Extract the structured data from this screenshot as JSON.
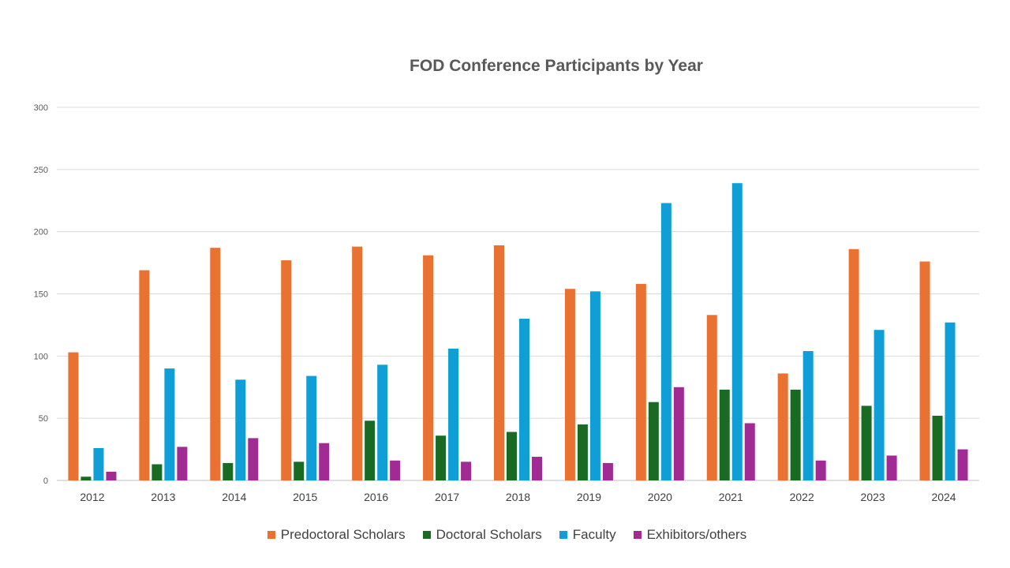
{
  "chart_data": {
    "type": "bar",
    "title": "FOD Conference Participants by Year",
    "xlabel": "",
    "ylabel": "",
    "ylim": [
      0,
      300
    ],
    "yticks": [
      0,
      50,
      100,
      150,
      200,
      250,
      300
    ],
    "grid": true,
    "legend_position": "bottom",
    "categories": [
      "2012",
      "2013",
      "2014",
      "2015",
      "2016",
      "2017",
      "2018",
      "2019",
      "2020",
      "2021",
      "2022",
      "2023",
      "2024"
    ],
    "series": [
      {
        "name": "Predoctoral Scholars",
        "color": "#E97132",
        "values": [
          103,
          169,
          187,
          177,
          188,
          181,
          189,
          154,
          158,
          133,
          86,
          186,
          176
        ]
      },
      {
        "name": "Doctoral Scholars",
        "color": "#196B24",
        "values": [
          3,
          13,
          14,
          15,
          48,
          36,
          39,
          45,
          63,
          73,
          73,
          60,
          52
        ]
      },
      {
        "name": "Faculty",
        "color": "#0F9ED5",
        "values": [
          26,
          90,
          81,
          84,
          93,
          106,
          130,
          152,
          223,
          239,
          104,
          121,
          127
        ]
      },
      {
        "name": "Exhibitors/others",
        "color": "#A02B93",
        "values": [
          7,
          27,
          34,
          30,
          16,
          15,
          19,
          14,
          75,
          46,
          16,
          20,
          25
        ]
      }
    ]
  }
}
